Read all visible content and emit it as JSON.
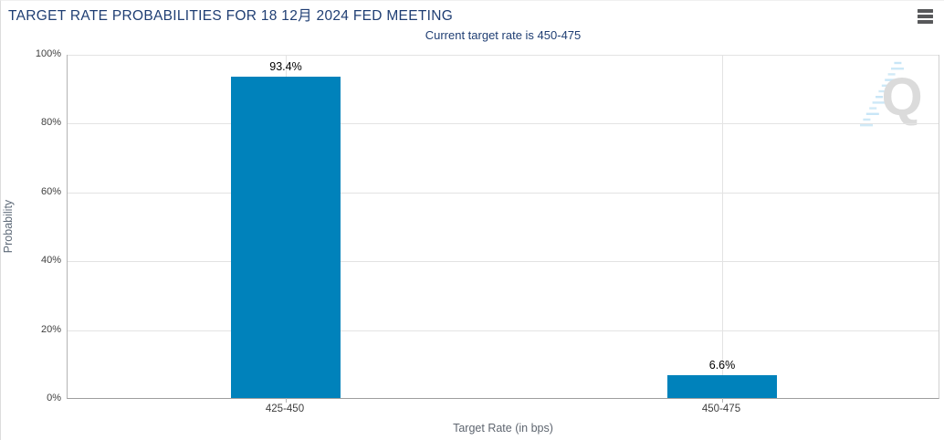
{
  "header": {
    "title": "TARGET RATE PROBABILITIES FOR 18 12月 2024 FED MEETING",
    "menu_icon": "hamburger-menu-icon"
  },
  "subtitle": "Current target rate is 450-475",
  "watermark_letter": "Q",
  "colors": {
    "bar": "#0082bb",
    "title_text": "#1f3e73",
    "gridline": "#e3e3e3",
    "axis_line": "#b3b3b3",
    "tick_label": "#404040",
    "axis_title": "#5f6670",
    "value_label": "#000000",
    "menu_icon": "#57585a",
    "watermark_gray": "#d8d8d8",
    "watermark_blue": "#8fccee"
  },
  "chart_data": {
    "type": "bar",
    "title": "TARGET RATE PROBABILITIES FOR 18 12月 2024 FED MEETING",
    "subtitle": "Current target rate is 450-475",
    "categories": [
      "425-450",
      "450-475"
    ],
    "values": [
      93.4,
      6.6
    ],
    "value_labels": [
      "93.4%",
      "6.6%"
    ],
    "xlabel": "Target Rate (in bps)",
    "ylabel": "Probability",
    "ylim": [
      0,
      100
    ],
    "ytick_step": 20,
    "ytick_labels": [
      "0%",
      "20%",
      "40%",
      "60%",
      "80%",
      "100%"
    ],
    "grid": true,
    "legend": false,
    "bar_color": "#0082bb"
  }
}
